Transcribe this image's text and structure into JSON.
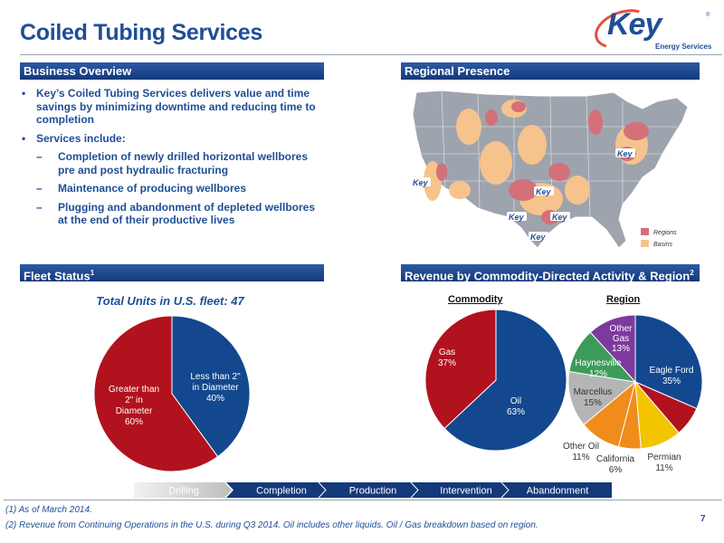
{
  "slide": {
    "title": "Coiled Tubing Services",
    "page_number": "7"
  },
  "logo": {
    "name": "Key",
    "subtitle": "Energy Services",
    "trademark": "®"
  },
  "business_overview": {
    "header": "Business Overview",
    "bullets": [
      {
        "text": "Key’s Coiled Tubing Services delivers value and time savings by minimizing downtime and reducing time to completion",
        "sub": []
      },
      {
        "text": "Services include:",
        "sub": [
          "Completion of newly drilled horizontal wellbores pre and post hydraulic fracturing",
          "Maintenance of producing wellbores",
          "Plugging and abandonment of depleted wellbores at the end of their productive lives"
        ]
      }
    ]
  },
  "regional_presence": {
    "header": "Regional Presence",
    "marker_label": "Key",
    "legend": [
      {
        "label": "Regions",
        "color": "#d4707a"
      },
      {
        "label": "Basins",
        "color": "#f6c38c"
      }
    ]
  },
  "fleet_status": {
    "header": "Fleet Status",
    "header_sup": "1",
    "subtitle": "Total Units in U.S. fleet: 47"
  },
  "revenue": {
    "header": "Revenue by Commodity-Directed Activity & Region",
    "header_sup": "2",
    "commodity_label": "Commodity",
    "region_label": "Region"
  },
  "chart_data": [
    {
      "type": "pie",
      "title": "",
      "slices": [
        {
          "label": "Less than 2\" in Diameter",
          "value": 40,
          "display": "40%",
          "color": "#13488f"
        },
        {
          "label": "Greater than 2\" in Diameter",
          "value": 60,
          "display": "60%",
          "color": "#b1121d"
        }
      ]
    },
    {
      "type": "pie",
      "title": "Commodity",
      "slices": [
        {
          "label": "Oil",
          "value": 63,
          "display": "63%",
          "color": "#13488f"
        },
        {
          "label": "Gas",
          "value": 37,
          "display": "37%",
          "color": "#b1121d"
        }
      ]
    },
    {
      "type": "pie",
      "title": "Region",
      "slices": [
        {
          "label": "Eagle Ford",
          "value": 35,
          "display": "35%",
          "color": "#13488f"
        },
        {
          "label": "",
          "value": 8,
          "display": "",
          "color": "#b1121d"
        },
        {
          "label": "Permian",
          "value": 11,
          "display": "11%",
          "color": "#f3c400"
        },
        {
          "label": "California",
          "value": 6,
          "display": "6%",
          "color": "#f08c1c"
        },
        {
          "label": "Other Oil",
          "value": 11,
          "display": "11%",
          "color": "#f08c1c"
        },
        {
          "label": "Marcellus",
          "value": 15,
          "display": "15%",
          "color": "#b5b5b5"
        },
        {
          "label": "Haynesville",
          "value": 12,
          "display": "12%",
          "color": "#3d9b5a"
        },
        {
          "label": "Other Gas",
          "value": 13,
          "display": "13%",
          "color": "#7d3a9e"
        }
      ]
    }
  ],
  "lifecycle": [
    "Drilling",
    "Completion",
    "Production",
    "Intervention",
    "Abandonment"
  ],
  "footnotes": [
    "(1)   As of  March 2014.",
    "(2)   Revenue from Continuing Operations in the U.S. during Q3 2014. Oil includes other liquids. Oil / Gas breakdown based on region."
  ],
  "colors": {
    "primary_blue": "#1f4e96",
    "header_blue": "#14397a",
    "red": "#b1121d"
  }
}
